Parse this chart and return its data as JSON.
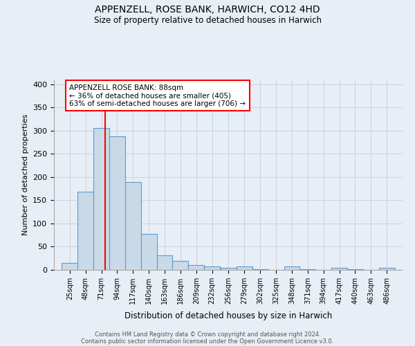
{
  "title": "APPENZELL, ROSE BANK, HARWICH, CO12 4HD",
  "subtitle": "Size of property relative to detached houses in Harwich",
  "xlabel": "Distribution of detached houses by size in Harwich",
  "ylabel": "Number of detached properties",
  "bins": [
    25,
    48,
    71,
    94,
    117,
    140,
    163,
    186,
    209,
    232,
    256,
    279,
    302,
    325,
    348,
    371,
    394,
    417,
    440,
    463,
    486
  ],
  "bin_labels": [
    "25sqm",
    "48sqm",
    "71sqm",
    "94sqm",
    "117sqm",
    "140sqm",
    "163sqm",
    "186sqm",
    "209sqm",
    "232sqm",
    "256sqm",
    "279sqm",
    "302sqm",
    "325sqm",
    "348sqm",
    "371sqm",
    "394sqm",
    "417sqm",
    "440sqm",
    "463sqm",
    "486sqm"
  ],
  "values": [
    15,
    168,
    305,
    288,
    190,
    78,
    32,
    20,
    10,
    8,
    5,
    8,
    2,
    0,
    8,
    2,
    0,
    5,
    2,
    0,
    5
  ],
  "bar_color": "#c9d9e8",
  "bar_edge_color": "#5b9bd5",
  "red_line_x": 88,
  "annotation_line1": "APPENZELL ROSE BANK: 88sqm",
  "annotation_line2": "← 36% of detached houses are smaller (405)",
  "annotation_line3": "63% of semi-detached houses are larger (706) →",
  "ylim": [
    0,
    410
  ],
  "yticks": [
    0,
    50,
    100,
    150,
    200,
    250,
    300,
    350,
    400
  ],
  "grid_color": "#cdd5e4",
  "background_color": "#e8eef5",
  "footer1": "Contains HM Land Registry data © Crown copyright and database right 2024.",
  "footer2": "Contains public sector information licensed under the Open Government Licence v3.0."
}
